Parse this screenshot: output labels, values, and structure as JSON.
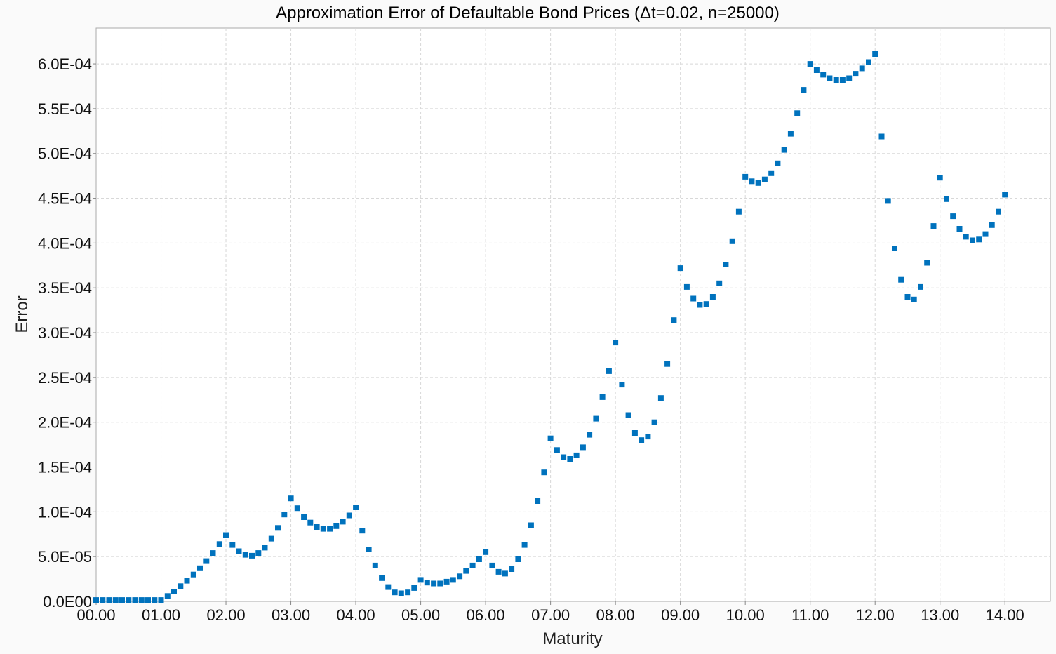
{
  "chart_data": {
    "type": "scatter",
    "title": "Approximation Error of Defaultable Bond Prices (Δt=0.02, n=25000)",
    "xlabel": "Maturity",
    "ylabel": "Error",
    "xlim": [
      0,
      14.7
    ],
    "ylim": [
      0,
      0.00064
    ],
    "x_ticks": [
      0,
      1,
      2,
      3,
      4,
      5,
      6,
      7,
      8,
      9,
      10,
      11,
      12,
      13,
      14
    ],
    "x_tick_labels": [
      "00.00",
      "01.00",
      "02.00",
      "03.00",
      "04.00",
      "05.00",
      "06.00",
      "07.00",
      "08.00",
      "09.00",
      "10.00",
      "11.00",
      "12.00",
      "13.00",
      "14.00"
    ],
    "y_ticks": [
      0,
      5e-05,
      0.0001,
      0.00015,
      0.0002,
      0.00025,
      0.0003,
      0.00035,
      0.0004,
      0.00045,
      0.0005,
      0.00055,
      0.0006
    ],
    "y_tick_labels": [
      "0.0E00",
      "5.0E-05",
      "1.0E-04",
      "1.5E-04",
      "2.0E-04",
      "2.5E-04",
      "3.0E-04",
      "3.5E-04",
      "4.0E-04",
      "4.5E-04",
      "5.0E-04",
      "5.5E-04",
      "6.0E-04"
    ],
    "grid": true,
    "marker_color": "#0072bd",
    "series": [
      {
        "x": [
          0.0,
          0.1,
          0.2,
          0.3,
          0.4,
          0.5,
          0.6,
          0.7,
          0.8,
          0.9,
          1.0,
          1.1,
          1.2,
          1.3,
          1.4,
          1.5,
          1.6,
          1.7,
          1.8,
          1.9,
          2.0,
          2.1,
          2.2,
          2.3,
          2.4,
          2.5,
          2.6,
          2.7,
          2.8,
          2.9,
          3.0,
          3.1,
          3.2,
          3.3,
          3.4,
          3.5,
          3.6,
          3.7,
          3.8,
          3.9,
          4.0,
          4.1,
          4.2,
          4.3,
          4.4,
          4.5,
          4.6,
          4.7,
          4.8,
          4.9,
          5.0,
          5.1,
          5.2,
          5.3,
          5.4,
          5.5,
          5.6,
          5.7,
          5.8,
          5.9,
          6.0,
          6.1,
          6.2,
          6.3,
          6.4,
          6.5,
          6.6,
          6.7,
          6.8,
          6.9,
          7.0,
          7.1,
          7.2,
          7.3,
          7.4,
          7.5,
          7.6,
          7.7,
          7.8,
          7.9,
          8.0,
          8.1,
          8.2,
          8.3,
          8.4,
          8.5,
          8.6,
          8.7,
          8.8,
          8.9,
          9.0,
          9.1,
          9.2,
          9.3,
          9.4,
          9.5,
          9.6,
          9.7,
          9.8,
          9.9,
          10.0,
          10.1,
          10.2,
          10.3,
          10.4,
          10.5,
          10.6,
          10.7,
          10.8,
          10.9,
          11.0,
          11.1,
          11.2,
          11.3,
          11.4,
          11.5,
          11.6,
          11.7,
          11.8,
          11.9,
          12.0,
          12.1,
          12.2,
          12.3,
          12.4,
          12.5,
          12.6,
          12.7,
          12.8,
          12.9,
          13.0,
          13.1,
          13.2,
          13.3,
          13.4,
          13.5,
          13.6,
          13.7,
          13.8,
          13.9,
          14.0
        ],
        "y": [
          1.5e-06,
          1.5e-06,
          1.5e-06,
          1.5e-06,
          1.5e-06,
          1.5e-06,
          1.5e-06,
          1.5e-06,
          1.5e-06,
          1.5e-06,
          1.5e-06,
          6e-06,
          1.1e-05,
          1.7e-05,
          2.3e-05,
          3e-05,
          3.7e-05,
          4.5e-05,
          5.4e-05,
          6.4e-05,
          7.4e-05,
          6.3e-05,
          5.6e-05,
          5.2e-05,
          5.1e-05,
          5.4e-05,
          6e-05,
          7e-05,
          8.2e-05,
          9.7e-05,
          0.000115,
          0.000104,
          9.4e-05,
          8.8e-05,
          8.3e-05,
          8.1e-05,
          8.1e-05,
          8.4e-05,
          8.9e-05,
          9.6e-05,
          0.000105,
          7.9e-05,
          5.8e-05,
          4e-05,
          2.6e-05,
          1.6e-05,
          1e-05,
          9e-06,
          1e-05,
          1.5e-05,
          2.4e-05,
          2.1e-05,
          2e-05,
          2e-05,
          2.2e-05,
          2.4e-05,
          2.8e-05,
          3.4e-05,
          4e-05,
          4.7e-05,
          5.5e-05,
          4e-05,
          3.3e-05,
          3.1e-05,
          3.6e-05,
          4.7e-05,
          6.3e-05,
          8.5e-05,
          0.000112,
          0.000144,
          0.000182,
          0.000169,
          0.000161,
          0.000159,
          0.000163,
          0.000172,
          0.000186,
          0.000204,
          0.000228,
          0.000257,
          0.000289,
          0.000242,
          0.000208,
          0.000188,
          0.00018,
          0.000184,
          0.0002,
          0.000227,
          0.000265,
          0.000314,
          0.000372,
          0.000351,
          0.000338,
          0.000331,
          0.000332,
          0.00034,
          0.000355,
          0.000376,
          0.000402,
          0.000435,
          0.000474,
          0.000469,
          0.000467,
          0.000471,
          0.000478,
          0.000489,
          0.000504,
          0.000522,
          0.000545,
          0.000571,
          0.0006,
          0.000593,
          0.000588,
          0.000584,
          0.000582,
          0.000582,
          0.000584,
          0.000589,
          0.000595,
          0.000602,
          0.000611,
          0.000519,
          0.000447,
          0.000394,
          0.000359,
          0.00034,
          0.000337,
          0.000351,
          0.000378,
          0.000419,
          0.000473,
          0.000449,
          0.00043,
          0.000416,
          0.000407,
          0.000403,
          0.000404,
          0.00041,
          0.00042,
          0.000435,
          0.000454
        ]
      }
    ]
  }
}
